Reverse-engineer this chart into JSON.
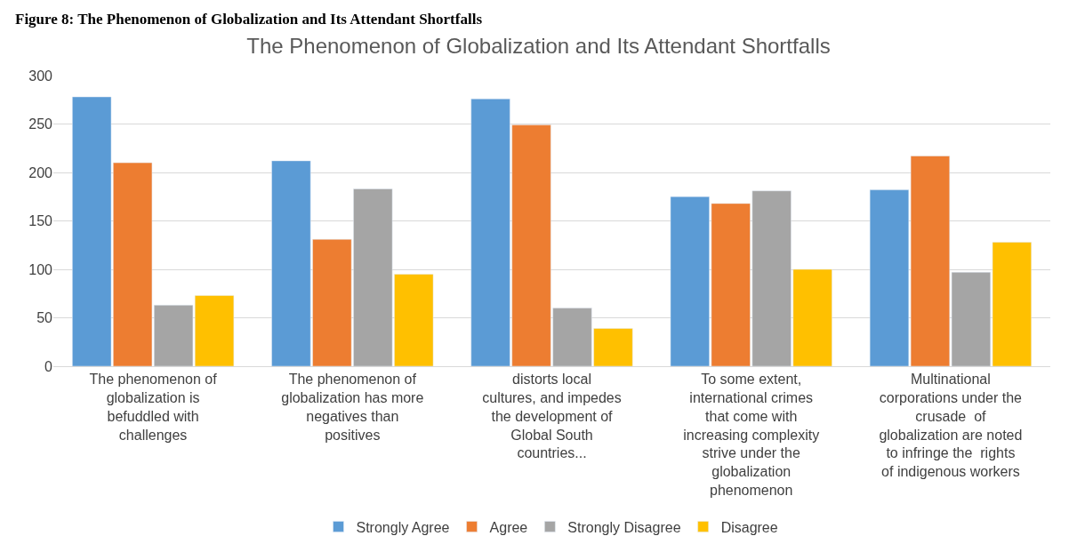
{
  "chart_data": {
    "type": "bar",
    "title": "The Phenomenon of Globalization and Its Attendant Shortfalls",
    "annotations": [
      "Figure 8: The Phenomenon of Globalization and Its Attendant Shortfalls"
    ],
    "categories": [
      "The phenomenon of globalization is befuddled with challenges",
      "The phenomenon of globalization has more negatives than positives",
      "distorts local cultures, and impedes the development of Global South countries...",
      "To some extent, international crimes that come with increasing complexity strive under the globalization phenomenon",
      "Multinational corporations under the crusade  of globalization are noted to infringe the  rights of indigenous workers"
    ],
    "series": [
      {
        "name": "Strongly Agree",
        "color": "#5b9bd5",
        "values": [
          278,
          212,
          276,
          175,
          182
        ]
      },
      {
        "name": "Agree",
        "color": "#ed7d31",
        "values": [
          210,
          131,
          249,
          168,
          217
        ]
      },
      {
        "name": "Strongly Disagree",
        "color": "#a5a5a5",
        "values": [
          63,
          183,
          60,
          181,
          97
        ]
      },
      {
        "name": "Disagree",
        "color": "#ffc000",
        "values": [
          73,
          95,
          39,
          100,
          128
        ]
      }
    ],
    "ylim": [
      0,
      300
    ],
    "yticks": [
      0,
      50,
      100,
      150,
      200,
      250,
      300
    ],
    "grid": "y",
    "legend": "bottom"
  }
}
